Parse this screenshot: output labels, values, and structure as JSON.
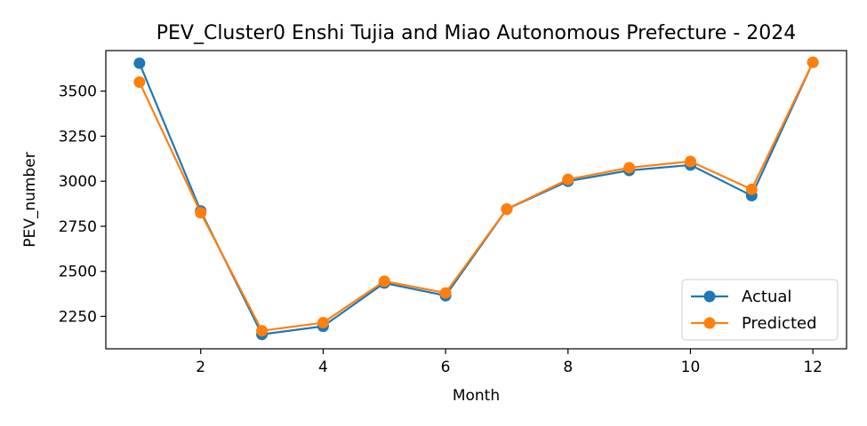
{
  "chart_data": {
    "type": "line",
    "title": "PEV_Cluster0 Enshi Tujia and Miao Autonomous Prefecture - 2024",
    "xlabel": "Month",
    "ylabel": "PEV_number",
    "x": [
      1,
      2,
      3,
      4,
      5,
      6,
      7,
      8,
      9,
      10,
      11,
      12
    ],
    "xlim": [
      0.45,
      12.55
    ],
    "ylim": [
      2070,
      3725
    ],
    "x_ticks": [
      2,
      4,
      6,
      8,
      10,
      12
    ],
    "y_ticks": [
      2250,
      2500,
      2750,
      3000,
      3250,
      3500
    ],
    "grid": false,
    "legend_position": "lower-right",
    "series": [
      {
        "name": "Actual",
        "color": "#1f77b4",
        "marker": "circle",
        "values": [
          3655,
          2835,
          2150,
          2195,
          2435,
          2365,
          2845,
          3000,
          3060,
          3090,
          2920,
          3660
        ]
      },
      {
        "name": "Predicted",
        "color": "#ff7f0e",
        "marker": "circle",
        "values": [
          3550,
          2825,
          2170,
          2215,
          2445,
          2380,
          2845,
          3010,
          3075,
          3110,
          2955,
          3660
        ]
      }
    ]
  }
}
